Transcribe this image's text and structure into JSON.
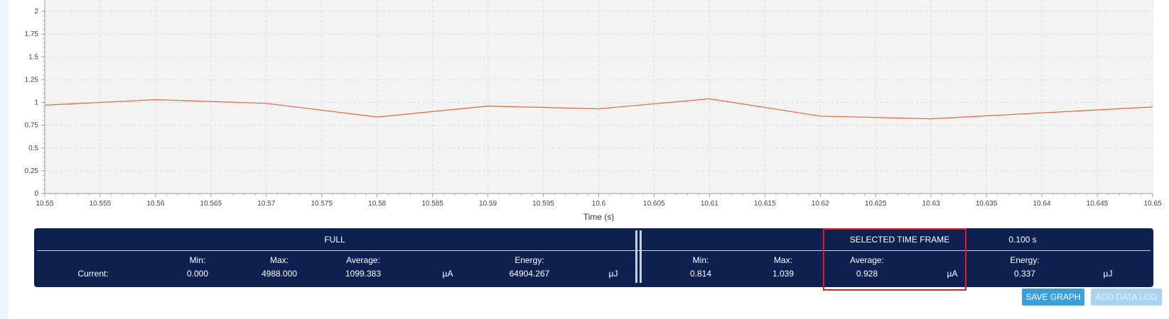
{
  "chart_data": {
    "type": "line",
    "xlabel": "Time (s)",
    "ylabel": "",
    "xlim": [
      10.55,
      10.65
    ],
    "ylim": [
      0,
      2
    ],
    "x_ticks": [
      "10.55",
      "10.555",
      "10.56",
      "10.565",
      "10.57",
      "10.575",
      "10.58",
      "10.585",
      "10.59",
      "10.595",
      "10.6",
      "10.605",
      "10.61",
      "10.615",
      "10.62",
      "10.625",
      "10.63",
      "10.635",
      "10.64",
      "10.645",
      "10.65"
    ],
    "y_ticks": [
      "0",
      "0.25",
      "0.5",
      "0.75",
      "1",
      "1.25",
      "1.5",
      "1.75",
      "2"
    ],
    "grid": true,
    "line_color": "#e8643c",
    "series": [
      {
        "x": [
          10.55,
          10.56,
          10.57,
          10.58,
          10.59,
          10.6,
          10.61,
          10.62,
          10.63,
          10.65
        ],
        "y": [
          0.97,
          1.03,
          0.99,
          0.84,
          0.96,
          0.93,
          1.04,
          0.85,
          0.82,
          0.95
        ]
      }
    ]
  },
  "stats": {
    "full_title": "FULL",
    "selected_title": "SELECTED TIME FRAME",
    "selected_duration": "0.100 s",
    "row_label": "Current:",
    "min_label": "Min:",
    "max_label": "Max:",
    "avg_label": "Average:",
    "energy_label": "Energy:",
    "current_unit": "µA",
    "energy_unit": "µJ",
    "full": {
      "min": "0.000",
      "max": "4988.000",
      "average": "1099.383",
      "energy": "64904.267"
    },
    "selected": {
      "min": "0.814",
      "max": "1.039",
      "average": "0.928",
      "energy": "0.337"
    }
  },
  "buttons": {
    "save_graph": "SAVE GRAPH",
    "add_data_log": "ADD DATA LOG"
  },
  "colors": {
    "panel_bg": "#0d2150",
    "highlight": "#e31b1b",
    "save_button": "#3aa0dc",
    "add_button_disabled": "#a9d3ef"
  }
}
